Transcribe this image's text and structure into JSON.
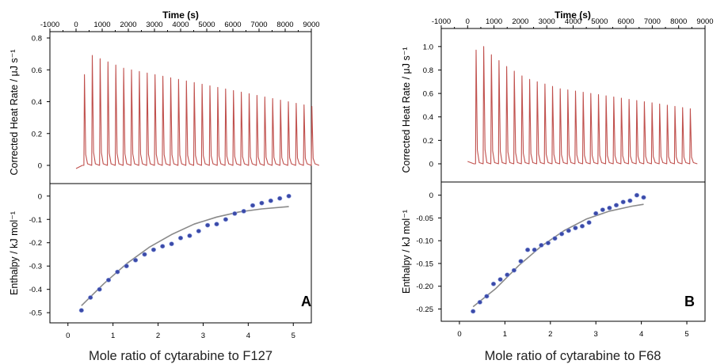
{
  "chart_data": [
    {
      "type": "scatter",
      "panel_label": "A",
      "top": {
        "xlabel": "Time (s)",
        "ylabel": "Corrected Heat Rate / μJ s⁻¹",
        "xlim": [
          -1000,
          9000
        ],
        "ylim": [
          -0.09,
          0.8
        ],
        "xticks": [
          -1000,
          0,
          1000,
          2000,
          3000,
          4000,
          5000,
          6000,
          7000,
          8000,
          9000
        ],
        "yticks": [
          0,
          0.2,
          0.4,
          0.6,
          0.8
        ],
        "ytick_labels": [
          "0",
          "0.2",
          "0.4",
          "0.6",
          "0.8"
        ],
        "baseline_start": -0.02,
        "injection_start": 300,
        "injection_interval": 300,
        "peak_heights": [
          0.57,
          0.69,
          0.67,
          0.65,
          0.63,
          0.61,
          0.6,
          0.59,
          0.58,
          0.57,
          0.56,
          0.55,
          0.54,
          0.53,
          0.52,
          0.51,
          0.5,
          0.49,
          0.48,
          0.47,
          0.46,
          0.45,
          0.44,
          0.43,
          0.42,
          0.41,
          0.4,
          0.39,
          0.38,
          0.37
        ],
        "line_color": "#c0504d"
      },
      "bottom": {
        "xlabel": "Mole ratio of cytarabine to F127",
        "ylabel": "Enthalpy / kJ mol⁻¹",
        "xlim": [
          -0.4,
          5.4
        ],
        "ylim": [
          -0.53,
          0.04
        ],
        "xticks": [
          0,
          1,
          2,
          3,
          4,
          5
        ],
        "yticks": [
          0,
          -0.1,
          -0.2,
          -0.3,
          -0.4,
          -0.5
        ],
        "ytick_labels": [
          "0",
          "-0.1",
          "-0.2",
          "-0.3",
          "-0.4",
          "-0.5"
        ],
        "points_x": [
          0.3,
          0.5,
          0.7,
          0.9,
          1.1,
          1.3,
          1.5,
          1.7,
          1.9,
          2.1,
          2.3,
          2.5,
          2.7,
          2.9,
          3.1,
          3.3,
          3.5,
          3.7,
          3.9,
          4.1,
          4.3,
          4.5,
          4.7,
          4.9
        ],
        "points_y": [
          -0.49,
          -0.435,
          -0.4,
          -0.36,
          -0.325,
          -0.3,
          -0.275,
          -0.25,
          -0.23,
          -0.215,
          -0.205,
          -0.18,
          -0.17,
          -0.15,
          -0.125,
          -0.12,
          -0.1,
          -0.075,
          -0.065,
          -0.04,
          -0.03,
          -0.02,
          -0.01,
          0.0
        ],
        "fit_x": [
          0.3,
          0.8,
          1.3,
          1.8,
          2.3,
          2.8,
          3.3,
          3.8,
          4.3,
          4.9
        ],
        "fit_y": [
          -0.47,
          -0.375,
          -0.29,
          -0.22,
          -0.165,
          -0.12,
          -0.09,
          -0.068,
          -0.055,
          -0.045
        ],
        "marker_color": "#3b4aa8",
        "fit_color": "#8a8a8a"
      }
    },
    {
      "type": "scatter",
      "panel_label": "B",
      "top": {
        "xlabel": "Time (s)",
        "ylabel": "Corrected Heat Rate / μJ s⁻¹",
        "xlim": [
          -1000,
          9000
        ],
        "ylim": [
          -0.1,
          1.1
        ],
        "xticks": [
          -1000,
          0,
          1000,
          2000,
          3000,
          4000,
          5000,
          6000,
          7000,
          8000,
          9000
        ],
        "yticks": [
          0,
          0.2,
          0.4,
          0.6,
          0.8,
          1.0
        ],
        "ytick_labels": [
          "0",
          "0.2",
          "0.4",
          "0.6",
          "0.8",
          "1.0"
        ],
        "baseline_start": 0.02,
        "injection_start": 300,
        "injection_interval": 290,
        "peak_heights": [
          0.97,
          1.0,
          0.93,
          0.88,
          0.83,
          0.79,
          0.75,
          0.72,
          0.7,
          0.68,
          0.66,
          0.64,
          0.63,
          0.62,
          0.61,
          0.6,
          0.59,
          0.58,
          0.57,
          0.56,
          0.55,
          0.54,
          0.53,
          0.52,
          0.51,
          0.5,
          0.49,
          0.48,
          0.47
        ],
        "line_color": "#c0504d"
      },
      "bottom": {
        "xlabel": "Mole ratio of cytarabine to F68",
        "ylabel": "Enthalpy / kJ mol⁻¹",
        "xlim": [
          -0.4,
          5.4
        ],
        "ylim": [
          -0.27,
          0.022
        ],
        "xticks": [
          0,
          1,
          2,
          3,
          4,
          5
        ],
        "yticks": [
          0,
          -0.05,
          -0.1,
          -0.15,
          -0.2,
          -0.25
        ],
        "ytick_labels": [
          "0",
          "-0.05",
          "-0.10",
          "-0.15",
          "-0.20",
          "-0.25"
        ],
        "points_x": [
          0.3,
          0.45,
          0.6,
          0.75,
          0.9,
          1.05,
          1.2,
          1.35,
          1.5,
          1.65,
          1.8,
          1.95,
          2.1,
          2.25,
          2.4,
          2.55,
          2.7,
          2.85,
          3.0,
          3.15,
          3.3,
          3.45,
          3.6,
          3.75,
          3.9,
          4.05
        ],
        "points_y": [
          -0.255,
          -0.235,
          -0.222,
          -0.195,
          -0.185,
          -0.175,
          -0.165,
          -0.145,
          -0.12,
          -0.12,
          -0.11,
          -0.105,
          -0.095,
          -0.085,
          -0.078,
          -0.072,
          -0.068,
          -0.06,
          -0.04,
          -0.032,
          -0.028,
          -0.022,
          -0.015,
          -0.012,
          0.0,
          -0.005
        ],
        "fit_x": [
          0.3,
          0.8,
          1.3,
          1.8,
          2.3,
          2.8,
          3.3,
          3.8,
          4.05
        ],
        "fit_y": [
          -0.245,
          -0.205,
          -0.155,
          -0.112,
          -0.078,
          -0.052,
          -0.035,
          -0.024,
          -0.02
        ],
        "marker_color": "#3b4aa8",
        "fit_color": "#8a8a8a"
      }
    }
  ]
}
